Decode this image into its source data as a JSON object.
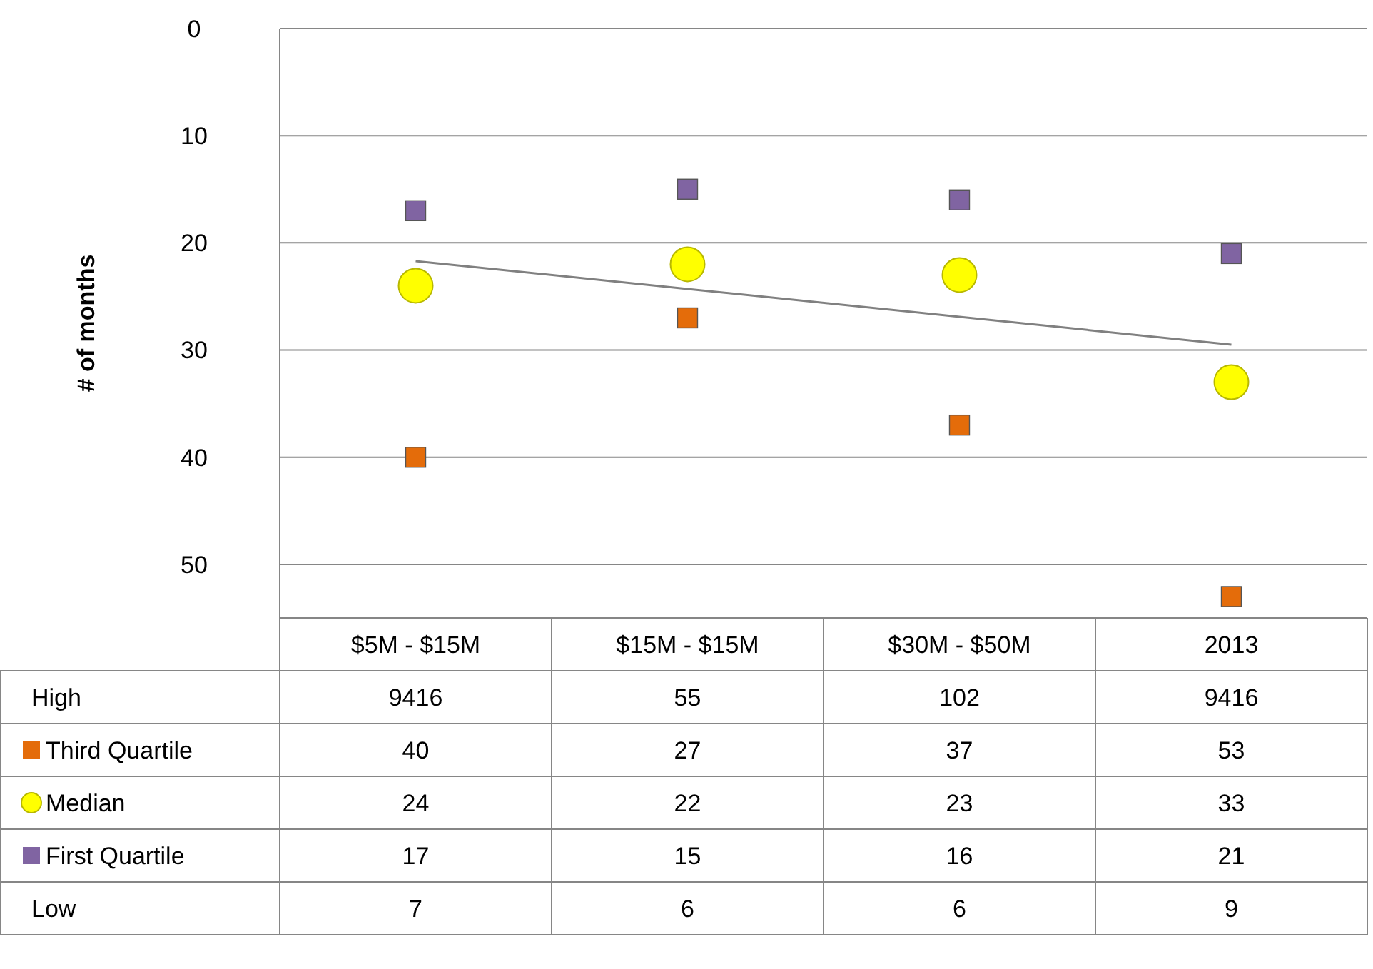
{
  "chart_data": [
    {
      "type": "scatter",
      "ylabel": "# of months",
      "categories": [
        null,
        null,
        null,
        null
      ],
      "ylim": [
        55,
        0
      ],
      "yticks": [
        0,
        10,
        20,
        30,
        40,
        50
      ],
      "grid": "y",
      "series": [
        {
          "marker": "square",
          "color": "#e46c0a",
          "values": [
            40,
            27,
            37,
            53
          ]
        },
        {
          "marker": "circle",
          "color": "#ffff00",
          "values": [
            24,
            22,
            23,
            33
          ]
        },
        {
          "marker": "square",
          "color": "#8064a2",
          "values": [
            17,
            15,
            16,
            21
          ]
        },
        {
          "type": "line",
          "color": "#808080",
          "values": [
            21.7,
            24.3,
            26.9,
            29.5
          ]
        }
      ]
    },
    {
      "type": "other",
      "categories": [
        "$5M - $15M",
        "$15M - $15M",
        "$30M - $50M",
        "2013"
      ],
      "data_labels": true,
      "series": [
        {
          "name": "High",
          "values": [
            9416,
            55,
            102,
            9416
          ]
        },
        {
          "name": "Third Quartile",
          "marker": "square",
          "color": "#e46c0a",
          "values": [
            40,
            27,
            37,
            53
          ]
        },
        {
          "name": "Median",
          "marker": "circle",
          "color": "#ffff00",
          "values": [
            24,
            22,
            23,
            33
          ]
        },
        {
          "name": "First Quartile",
          "marker": "square",
          "color": "#8064a2",
          "values": [
            17,
            15,
            16,
            21
          ]
        },
        {
          "name": "Low",
          "values": [
            7,
            6,
            6,
            9
          ]
        }
      ]
    }
  ]
}
